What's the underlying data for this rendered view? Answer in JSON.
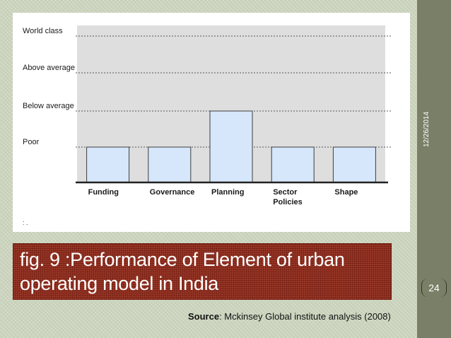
{
  "slide": {
    "date": "12/26/2014",
    "page_number": "24",
    "title_line1": "fig. 9 :Performance of Element of urban",
    "title_line2": "operating model in India",
    "source_label": "Source",
    "source_text": ": Mckinsey Global institute analysis (2008)",
    "stray_mark": ": ."
  },
  "colors": {
    "bar_fill": "#d6e6fb",
    "bar_stroke": "#3d3d3d",
    "plot_background": "#dedede",
    "banner": "#8f2414",
    "sidebar": "#7a8068",
    "slide_background": "#cfd8c1"
  },
  "chart_data": {
    "type": "bar",
    "title": "",
    "xlabel": "",
    "ylabel": "",
    "categories": [
      "Funding",
      "Governance",
      "Planning",
      "Sector\nPolicies",
      "Shape"
    ],
    "y_levels": [
      "Poor",
      "Below average",
      "Above average",
      "World class"
    ],
    "values": [
      1,
      1,
      2,
      1,
      1
    ],
    "ylim": [
      0,
      4
    ],
    "grid": "dashed horizontal lines at each level",
    "legend": "none"
  }
}
